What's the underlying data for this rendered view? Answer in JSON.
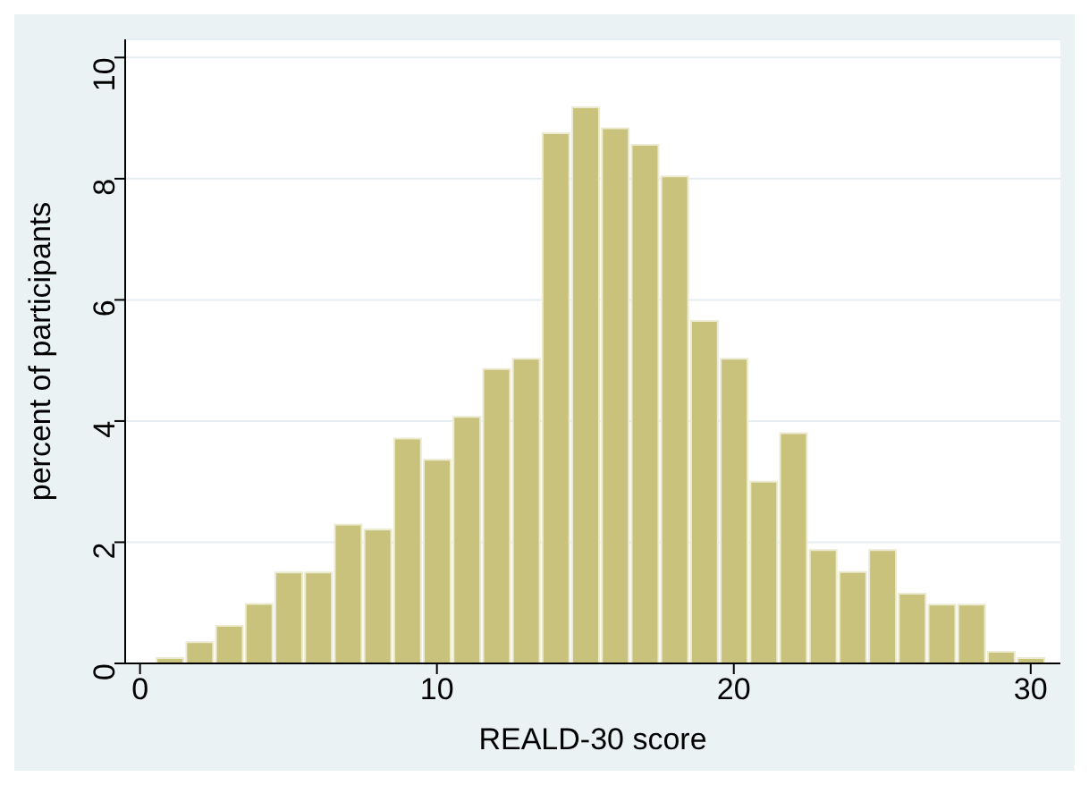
{
  "chart_data": {
    "type": "histogram",
    "xlabel": "REALD-30 score",
    "ylabel": "percent of participants",
    "bins": [
      0.5,
      1.5,
      2.5,
      3.5,
      4.5,
      5.5,
      6.5,
      7.5,
      8.5,
      9.5,
      10.5,
      11.5,
      12.5,
      13.5,
      14.5,
      15.5,
      16.5,
      17.5,
      18.5,
      19.5,
      20.5,
      21.5,
      22.5,
      23.5,
      24.5,
      25.5,
      26.5,
      27.5,
      28.5,
      29.5,
      30.5
    ],
    "values": [
      0.09,
      0.35,
      0.62,
      0.98,
      1.5,
      1.5,
      2.29,
      2.21,
      3.71,
      3.36,
      4.07,
      4.86,
      5.03,
      8.75,
      9.18,
      8.83,
      8.56,
      8.04,
      5.65,
      5.03,
      3.0,
      3.8,
      1.87,
      1.51,
      1.87,
      1.15,
      0.97,
      0.97,
      0.19,
      0.09
    ],
    "color": "#c9c27c",
    "xlim": [
      -0.5,
      31
    ],
    "xticks": [
      0,
      10,
      20,
      30
    ],
    "ylim": [
      0,
      10.3
    ],
    "yticks": [
      0,
      2,
      4,
      6,
      8,
      10
    ],
    "grid": "y"
  }
}
